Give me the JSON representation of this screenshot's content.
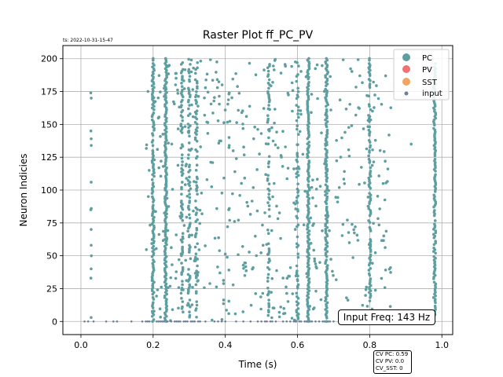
{
  "timestamp": "ts: 2022-10-31-15-47",
  "info": {
    "cv_pc": "CV PC: 0.59",
    "cv_pv": "CV PV: 0.0",
    "cv_sst": "CV_SST: 0"
  },
  "freq_label": "Input Freq: 143 Hz",
  "colors": {
    "PC": "#5f9ea0",
    "PV": "#ef7373",
    "SST": "#f4a460",
    "input": "#6d7f99"
  },
  "chart_data": {
    "type": "scatter",
    "title": "Raster Plot ff_PC_PV",
    "xlabel": "Time (s)",
    "ylabel": "Neuron Indicies",
    "xlim": [
      -0.05,
      1.03
    ],
    "ylim": [
      -10,
      210
    ],
    "xticks": [
      "0.0",
      "0.2",
      "0.4",
      "0.6",
      "0.8",
      "1.0"
    ],
    "xtick_values": [
      0.0,
      0.2,
      0.4,
      0.6,
      0.8,
      1.0
    ],
    "yticks": [
      "0",
      "25",
      "50",
      "75",
      "100",
      "125",
      "150",
      "175",
      "200"
    ],
    "ytick_values": [
      0,
      25,
      50,
      75,
      100,
      125,
      150,
      175,
      200
    ],
    "grid": true,
    "legend_position": "top-right",
    "legend": [
      "PC",
      "PV",
      "SST",
      "input"
    ],
    "series": [
      {
        "name": "PC",
        "columns": [
          {
            "t": 0.028,
            "n": [
              3,
              33,
              40,
              50,
              58,
              70,
              85,
              86,
              106,
              134,
              139,
              145,
              170,
              174
            ]
          },
          {
            "t": 0.2,
            "n_from": 0,
            "n_to": 201,
            "density": 0.85
          },
          {
            "t": 0.235,
            "n_from": 0,
            "n_to": 201,
            "density": 1.0
          },
          {
            "t": 0.28,
            "n_from": 2,
            "n_to": 200,
            "density": 0.5
          },
          {
            "t": 0.3,
            "n_from": 2,
            "n_to": 200,
            "density": 0.55
          },
          {
            "t": 0.32,
            "n_from": 2,
            "n_to": 198,
            "density": 0.45
          },
          {
            "t": 0.41,
            "n": [
              6,
              85,
              86,
              134,
              140,
              174
            ]
          },
          {
            "t": 0.52,
            "n_from": 2,
            "n_to": 198,
            "density": 0.4
          },
          {
            "t": 0.6,
            "n_from": 2,
            "n_to": 198,
            "density": 0.45
          },
          {
            "t": 0.63,
            "n_from": 0,
            "n_to": 201,
            "density": 0.95
          },
          {
            "t": 0.68,
            "n_from": 0,
            "n_to": 201,
            "density": 0.95
          },
          {
            "t": 0.8,
            "n_from": 0,
            "n_to": 201,
            "density": 0.7
          },
          {
            "t": 0.98,
            "n_from": 0,
            "n_to": 198,
            "density": 0.9
          }
        ],
        "scatter_region": {
          "t_from": 0.18,
          "t_to": 0.86,
          "count": 520
        }
      },
      {
        "name": "PV",
        "columns": []
      },
      {
        "name": "SST",
        "columns": []
      },
      {
        "name": "input",
        "row": 0,
        "times": [
          0.01,
          0.02,
          0.035,
          0.07,
          0.09,
          0.1,
          0.14,
          0.17,
          0.18,
          0.185,
          0.19,
          0.21,
          0.215,
          0.22,
          0.225,
          0.23,
          0.24,
          0.25,
          0.26,
          0.265,
          0.27,
          0.275,
          0.285,
          0.29,
          0.295,
          0.305,
          0.31,
          0.315,
          0.325,
          0.33,
          0.345,
          0.37,
          0.38,
          0.39,
          0.4,
          0.43,
          0.45,
          0.47,
          0.49,
          0.5,
          0.51,
          0.515,
          0.525,
          0.53,
          0.54,
          0.56,
          0.57,
          0.58,
          0.59,
          0.595,
          0.605,
          0.61,
          0.62,
          0.625,
          0.635,
          0.64,
          0.65,
          0.66,
          0.67,
          0.675,
          0.685,
          0.69,
          0.7,
          0.72,
          0.73,
          0.74,
          0.76,
          0.77,
          0.78,
          0.79,
          0.805,
          0.81,
          0.83
        ]
      }
    ]
  }
}
